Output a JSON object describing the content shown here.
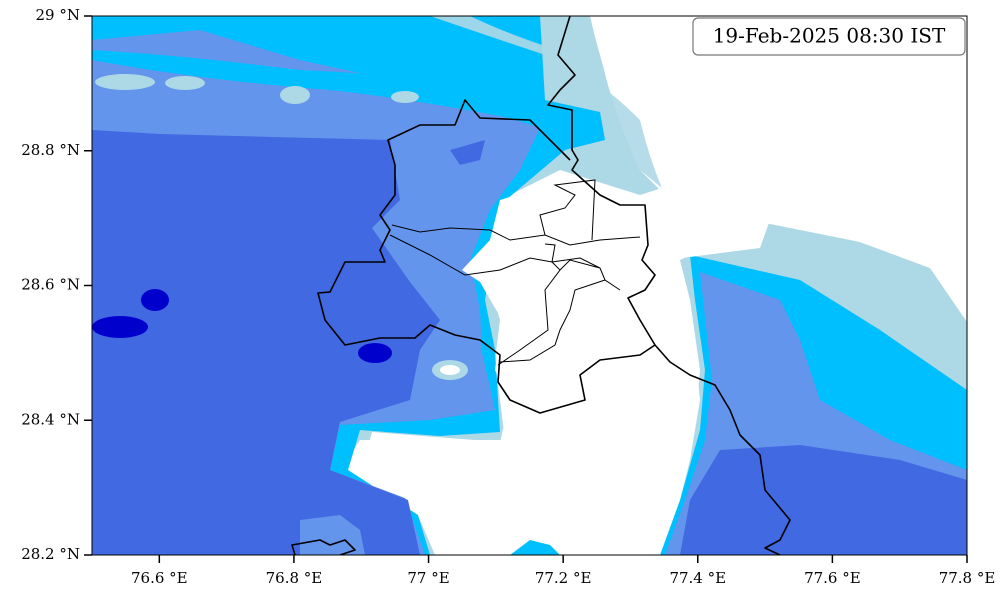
{
  "map": {
    "timestamp": "19-Feb-2025 08:30 IST",
    "xlim": [
      76.5,
      77.8
    ],
    "ylim": [
      28.2,
      29
    ],
    "xticks": [
      {
        "value": 76.6,
        "label": "76.6 °E"
      },
      {
        "value": 76.8,
        "label": "76.8 °E"
      },
      {
        "value": 77,
        "label": "77 °E"
      },
      {
        "value": 77.2,
        "label": "77.2 °E"
      },
      {
        "value": 77.4,
        "label": "77.4 °E"
      },
      {
        "value": 77.6,
        "label": "77.6 °E"
      },
      {
        "value": 77.8,
        "label": "77.8 °E"
      }
    ],
    "yticks": [
      {
        "value": 28.2,
        "label": "28.2 °N"
      },
      {
        "value": 28.4,
        "label": "28.4 °N"
      },
      {
        "value": 28.6,
        "label": "28.6 °N"
      },
      {
        "value": 28.8,
        "label": "28.8 °N"
      },
      {
        "value": 29,
        "label": "29 °N"
      }
    ]
  }
}
